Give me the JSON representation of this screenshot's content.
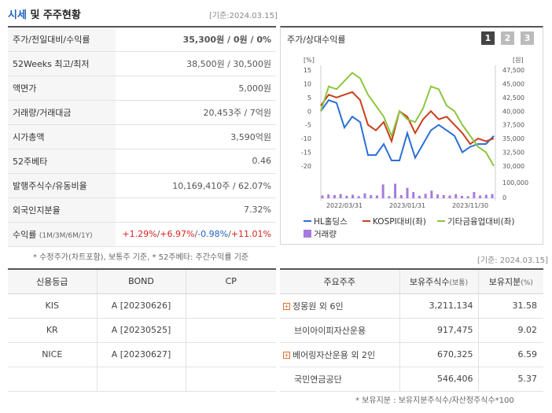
{
  "header": {
    "title_main": "시세",
    "title_rest": " 및 주주현황",
    "date": "[기준:2024.03.15]"
  },
  "left_table": [
    {
      "label": "주가/전일대비/수익률",
      "value_main": "35,300원 / 0원 / 0%"
    },
    {
      "label": "52Weeks 최고/최저",
      "value_main": "38,500원 / 30,500원"
    },
    {
      "label": "액면가",
      "value_main": "5,000원"
    },
    {
      "label": "거래량/거래대금",
      "value_main": "20,453주 / 7억원"
    },
    {
      "label": "시가총액",
      "value_main": "3,590억원"
    },
    {
      "label": "52주베타",
      "value_main": "0.46"
    },
    {
      "label": "발행주식수/유동비율",
      "value_main": "10,169,410주 / 62.07%"
    },
    {
      "label": "외국인지분율",
      "value_main": "7.32%"
    }
  ],
  "return_row": {
    "label": "수익률",
    "sub": "(1M/3M/6M/1Y)",
    "v1": "+1.29%",
    "v2": "+6.97%",
    "v3": "-0.98%",
    "v4": "+11.01%",
    "sep": "/"
  },
  "note1": "* 수정주가(차트포함), 보통주 기준, * 52주베타: 주간수익률 기준",
  "chart_panel": {
    "title": "주가/상대수익률",
    "tabs": [
      "1",
      "2",
      "3"
    ],
    "date": "[기준: 2024.03.15]"
  },
  "chart_data": {
    "type": "line",
    "left_unit": "[%]",
    "right_unit": "[원]",
    "left_ticks": [
      "15",
      "10",
      "5",
      "0",
      "-5",
      "-10",
      "-15",
      "-20"
    ],
    "right_ticks": [
      "47,500",
      "45,000",
      "42,500",
      "40,000",
      "37,500",
      "35,000",
      "32,500",
      "30,000"
    ],
    "vol_ticks": [
      "100,000",
      "0"
    ],
    "x_labels": [
      "2022/03/31",
      "2023/01/31",
      "2023/11/30"
    ],
    "series": [
      {
        "name": "HL홀딩스",
        "color": "#2b6fd6",
        "values": [
          0,
          4,
          3,
          -6,
          -2,
          -4,
          -16,
          -16,
          -12,
          -18,
          -18,
          -8,
          -17,
          -12,
          -7,
          -5,
          -7,
          -9,
          -15,
          -13,
          -12,
          -12,
          -9
        ]
      },
      {
        "name": "KOSPI대비(좌)",
        "color": "#c8401e",
        "values": [
          2,
          6,
          5,
          6,
          7,
          4,
          -5,
          -7,
          -4,
          -11,
          0,
          -2,
          -8,
          -3,
          0,
          -3,
          -2,
          -5,
          -8,
          -12,
          -10,
          -11,
          -10
        ]
      },
      {
        "name": "기타금융업대비(좌)",
        "color": "#8cc63f",
        "values": [
          0,
          9,
          8,
          11,
          14,
          12,
          6,
          2,
          -2,
          -9,
          0,
          -3,
          -4,
          1,
          9,
          8,
          2,
          0,
          -5,
          -9,
          -13,
          -15,
          -20
        ]
      }
    ],
    "volume": {
      "name": "거래량",
      "color": "#a57be0",
      "values": [
        8,
        11,
        9,
        12,
        7,
        10,
        6,
        14,
        9,
        8,
        40,
        6,
        42,
        9,
        30,
        18,
        7,
        13,
        22,
        11,
        9,
        8,
        12,
        7,
        6,
        18,
        8,
        10,
        12
      ]
    },
    "ylim_left": [
      -20,
      15
    ]
  },
  "credit_table": {
    "headers": [
      "신용등급",
      "BOND",
      "CP"
    ],
    "rows": [
      {
        "agency": "KIS",
        "bond": "A  [20230626]",
        "cp": ""
      },
      {
        "agency": "KR",
        "bond": "A  [20230525]",
        "cp": ""
      },
      {
        "agency": "NICE",
        "bond": "A  [20230627]",
        "cp": ""
      },
      {
        "agency": "",
        "bond": "",
        "cp": ""
      }
    ]
  },
  "holder_table": {
    "headers": [
      "주요주주",
      "보유주식수",
      "(보통)",
      "보유지분",
      "(%)"
    ],
    "rows": [
      {
        "name": "정몽원 외 6인",
        "plus": true,
        "shares": "3,211,134",
        "pct": "31.58"
      },
      {
        "name": "브이아이피자산운용",
        "plus": false,
        "shares": "917,475",
        "pct": "9.02"
      },
      {
        "name": "베어링자산운용 외 2인",
        "plus": true,
        "shares": "670,325",
        "pct": "6.59"
      },
      {
        "name": "국민연금공단",
        "plus": false,
        "shares": "546,406",
        "pct": "5.37"
      }
    ]
  },
  "note2": "* 보유지분 : 보유지분주식수/자산정주식수*100",
  "colors": {
    "accent": "#1f5fbf",
    "red": "#e02020",
    "tab_active": "#444444",
    "tab_inactive": "#bbbbbb"
  }
}
